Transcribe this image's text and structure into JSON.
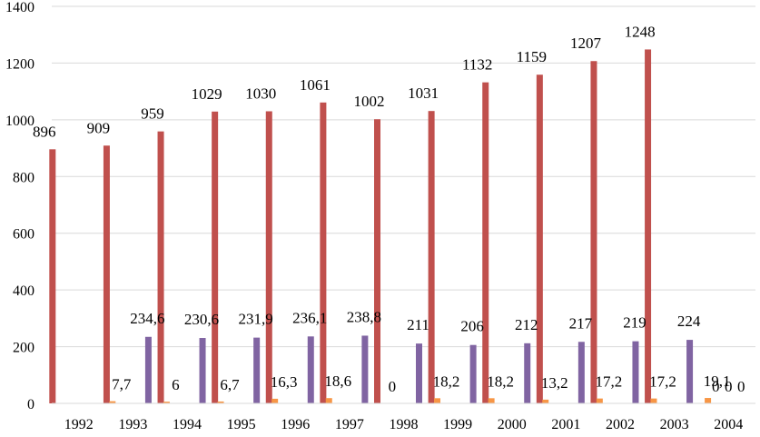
{
  "chart_data": {
    "type": "bar",
    "title": "",
    "xlabel": "",
    "ylabel": "",
    "ylim": [
      0,
      1400
    ],
    "yticks": [
      0,
      200,
      400,
      600,
      800,
      1000,
      1200,
      1400
    ],
    "grid": true,
    "legend": "none",
    "categories": [
      "1992",
      "1993",
      "1994",
      "1995",
      "1996",
      "1997",
      "1998",
      "1999",
      "2000",
      "2001",
      "2002",
      "2003",
      "2004"
    ],
    "series": [
      {
        "color": "#c0504d",
        "values": [
          896,
          909,
          959,
          1029,
          1030,
          1061,
          1002,
          1031,
          1132,
          1159,
          1207,
          1248,
          0
        ],
        "labels": [
          "896",
          "909",
          "959",
          "1029",
          "1030",
          "1061",
          "1002",
          "1031",
          "1132",
          "1159",
          "1207",
          "1248",
          "0"
        ]
      },
      {
        "color": "#8064a2",
        "values": [
          null,
          234.6,
          230.6,
          231.9,
          236.1,
          238.8,
          211,
          206,
          212,
          217,
          219,
          224,
          0
        ],
        "labels": [
          "",
          "234,6",
          "230,6",
          "231,9",
          "236,1",
          "238,8",
          "211",
          "206",
          "212",
          "217",
          "219",
          "224",
          "0"
        ]
      },
      {
        "color": "#f79646",
        "values": [
          7.7,
          6,
          6.7,
          16.3,
          18.6,
          0,
          18.2,
          18.2,
          13.2,
          17.2,
          17.2,
          19.1,
          0
        ],
        "labels": [
          "7,7",
          "6",
          "6,7",
          "16,3",
          "18,6",
          "0",
          "18,2",
          "18,2",
          "13,2",
          "17,2",
          "17,2",
          "19,1",
          "0"
        ]
      }
    ]
  }
}
